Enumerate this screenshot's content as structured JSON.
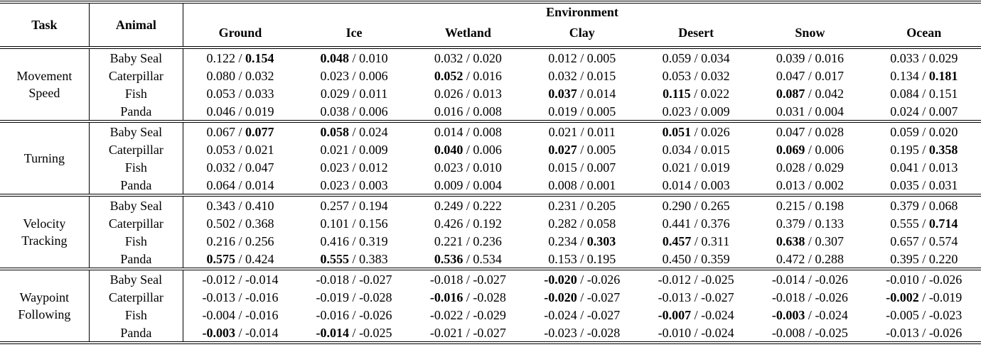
{
  "table": {
    "headers": {
      "task": "Task",
      "animal": "Animal",
      "environment": "Environment"
    },
    "environments": [
      "Ground",
      "Ice",
      "Wetland",
      "Clay",
      "Desert",
      "Snow",
      "Ocean"
    ],
    "value_separator": " / ",
    "bold_legend": "bold flag: 0 = none, 1 = first value bold, 2 = second value bold",
    "blocks": [
      {
        "task": "Movement Speed",
        "rows": [
          {
            "animal": "Baby Seal",
            "cells": [
              [
                "0.122",
                "0.154",
                2
              ],
              [
                "0.048",
                "0.010",
                1
              ],
              [
                "0.032",
                "0.020",
                0
              ],
              [
                "0.012",
                "0.005",
                0
              ],
              [
                "0.059",
                "0.034",
                0
              ],
              [
                "0.039",
                "0.016",
                0
              ],
              [
                "0.033",
                "0.029",
                0
              ]
            ]
          },
          {
            "animal": "Caterpillar",
            "cells": [
              [
                "0.080",
                "0.032",
                0
              ],
              [
                "0.023",
                "0.006",
                0
              ],
              [
                "0.052",
                "0.016",
                1
              ],
              [
                "0.032",
                "0.015",
                0
              ],
              [
                "0.053",
                "0.032",
                0
              ],
              [
                "0.047",
                "0.017",
                0
              ],
              [
                "0.134",
                "0.181",
                2
              ]
            ]
          },
          {
            "animal": "Fish",
            "cells": [
              [
                "0.053",
                "0.033",
                0
              ],
              [
                "0.029",
                "0.011",
                0
              ],
              [
                "0.026",
                "0.013",
                0
              ],
              [
                "0.037",
                "0.014",
                1
              ],
              [
                "0.115",
                "0.022",
                1
              ],
              [
                "0.087",
                "0.042",
                1
              ],
              [
                "0.084",
                "0.151",
                0
              ]
            ]
          },
          {
            "animal": "Panda",
            "cells": [
              [
                "0.046",
                "0.019",
                0
              ],
              [
                "0.038",
                "0.006",
                0
              ],
              [
                "0.016",
                "0.008",
                0
              ],
              [
                "0.019",
                "0.005",
                0
              ],
              [
                "0.023",
                "0.009",
                0
              ],
              [
                "0.031",
                "0.004",
                0
              ],
              [
                "0.024",
                "0.007",
                0
              ]
            ]
          }
        ]
      },
      {
        "task": "Turning",
        "rows": [
          {
            "animal": "Baby Seal",
            "cells": [
              [
                "0.067",
                "0.077",
                2
              ],
              [
                "0.058",
                "0.024",
                1
              ],
              [
                "0.014",
                "0.008",
                0
              ],
              [
                "0.021",
                "0.011",
                0
              ],
              [
                "0.051",
                "0.026",
                1
              ],
              [
                "0.047",
                "0.028",
                0
              ],
              [
                "0.059",
                "0.020",
                0
              ]
            ]
          },
          {
            "animal": "Caterpillar",
            "cells": [
              [
                "0.053",
                "0.021",
                0
              ],
              [
                "0.021",
                "0.009",
                0
              ],
              [
                "0.040",
                "0.006",
                1
              ],
              [
                "0.027",
                "0.005",
                1
              ],
              [
                "0.034",
                "0.015",
                0
              ],
              [
                "0.069",
                "0.006",
                1
              ],
              [
                "0.195",
                "0.358",
                2
              ]
            ]
          },
          {
            "animal": "Fish",
            "cells": [
              [
                "0.032",
                "0.047",
                0
              ],
              [
                "0.023",
                "0.012",
                0
              ],
              [
                "0.023",
                "0.010",
                0
              ],
              [
                "0.015",
                "0.007",
                0
              ],
              [
                "0.021",
                "0.019",
                0
              ],
              [
                "0.028",
                "0.029",
                0
              ],
              [
                "0.041",
                "0.013",
                0
              ]
            ]
          },
          {
            "animal": "Panda",
            "cells": [
              [
                "0.064",
                "0.014",
                0
              ],
              [
                "0.023",
                "0.003",
                0
              ],
              [
                "0.009",
                "0.004",
                0
              ],
              [
                "0.008",
                "0.001",
                0
              ],
              [
                "0.014",
                "0.003",
                0
              ],
              [
                "0.013",
                "0.002",
                0
              ],
              [
                "0.035",
                "0.031",
                0
              ]
            ]
          }
        ]
      },
      {
        "task": "Velocity Tracking",
        "rows": [
          {
            "animal": "Baby Seal",
            "cells": [
              [
                "0.343",
                "0.410",
                0
              ],
              [
                "0.257",
                "0.194",
                0
              ],
              [
                "0.249",
                "0.222",
                0
              ],
              [
                "0.231",
                "0.205",
                0
              ],
              [
                "0.290",
                "0.265",
                0
              ],
              [
                "0.215",
                "0.198",
                0
              ],
              [
                "0.379",
                "0.068",
                0
              ]
            ]
          },
          {
            "animal": "Caterpillar",
            "cells": [
              [
                "0.502",
                "0.368",
                0
              ],
              [
                "0.101",
                "0.156",
                0
              ],
              [
                "0.426",
                "0.192",
                0
              ],
              [
                "0.282",
                "0.058",
                0
              ],
              [
                "0.441",
                "0.376",
                0
              ],
              [
                "0.379",
                "0.133",
                0
              ],
              [
                "0.555",
                "0.714",
                2
              ]
            ]
          },
          {
            "animal": "Fish",
            "cells": [
              [
                "0.216",
                "0.256",
                0
              ],
              [
                "0.416",
                "0.319",
                0
              ],
              [
                "0.221",
                "0.236",
                0
              ],
              [
                "0.234",
                "0.303",
                2
              ],
              [
                "0.457",
                "0.311",
                1
              ],
              [
                "0.638",
                "0.307",
                1
              ],
              [
                "0.657",
                "0.574",
                0
              ]
            ]
          },
          {
            "animal": "Panda",
            "cells": [
              [
                "0.575",
                "0.424",
                1
              ],
              [
                "0.555",
                "0.383",
                1
              ],
              [
                "0.536",
                "0.534",
                1
              ],
              [
                "0.153",
                "0.195",
                0
              ],
              [
                "0.450",
                "0.359",
                0
              ],
              [
                "0.472",
                "0.288",
                0
              ],
              [
                "0.395",
                "0.220",
                0
              ]
            ]
          }
        ]
      },
      {
        "task": "Waypoint Following",
        "rows": [
          {
            "animal": "Baby Seal",
            "cells": [
              [
                "-0.012",
                "-0.014",
                0
              ],
              [
                "-0.018",
                "-0.027",
                0
              ],
              [
                "-0.018",
                "-0.027",
                0
              ],
              [
                "-0.020",
                "-0.026",
                1
              ],
              [
                "-0.012",
                "-0.025",
                0
              ],
              [
                "-0.014",
                "-0.026",
                0
              ],
              [
                "-0.010",
                "-0.026",
                0
              ]
            ]
          },
          {
            "animal": "Caterpillar",
            "cells": [
              [
                "-0.013",
                "-0.016",
                0
              ],
              [
                "-0.019",
                "-0.028",
                0
              ],
              [
                "-0.016",
                "-0.028",
                1
              ],
              [
                "-0.020",
                "-0.027",
                1
              ],
              [
                "-0.013",
                "-0.027",
                0
              ],
              [
                "-0.018",
                "-0.026",
                0
              ],
              [
                "-0.002",
                "-0.019",
                1
              ]
            ]
          },
          {
            "animal": "Fish",
            "cells": [
              [
                "-0.004",
                "-0.016",
                0
              ],
              [
                "-0.016",
                "-0.026",
                0
              ],
              [
                "-0.022",
                "-0.029",
                0
              ],
              [
                "-0.024",
                "-0.027",
                0
              ],
              [
                "-0.007",
                "-0.024",
                1
              ],
              [
                "-0.003",
                "-0.024",
                1
              ],
              [
                "-0.005",
                "-0.023",
                0
              ]
            ]
          },
          {
            "animal": "Panda",
            "cells": [
              [
                "-0.003",
                "-0.014",
                1
              ],
              [
                "-0.014",
                "-0.025",
                1
              ],
              [
                "-0.021",
                "-0.027",
                0
              ],
              [
                "-0.023",
                "-0.028",
                0
              ],
              [
                "-0.010",
                "-0.024",
                0
              ],
              [
                "-0.008",
                "-0.025",
                0
              ],
              [
                "-0.013",
                "-0.026",
                0
              ]
            ]
          }
        ]
      }
    ]
  }
}
